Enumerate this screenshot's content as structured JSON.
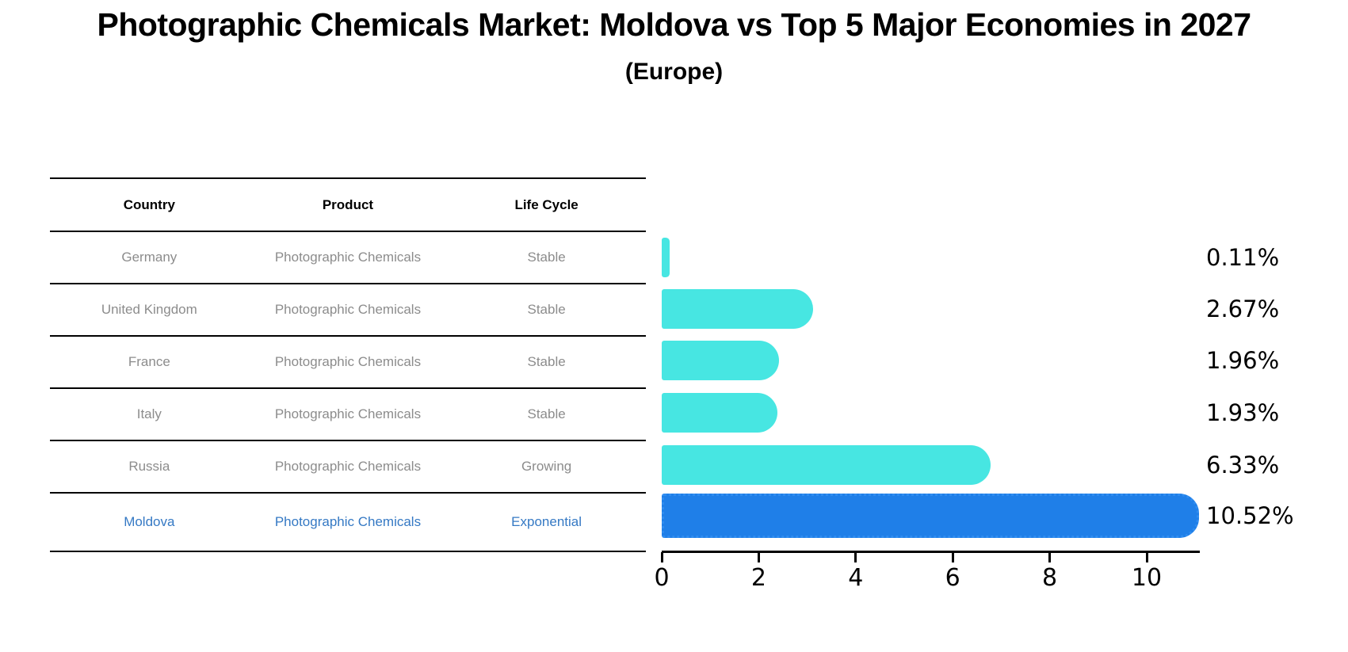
{
  "header": {
    "title": "Photographic Chemicals Market: Moldova vs Top 5 Major Economies in 2027",
    "subtitle": "(Europe)"
  },
  "table": {
    "columns": [
      "Country",
      "Product",
      "Life Cycle"
    ],
    "rows": [
      {
        "country": "Germany",
        "product": "Photographic Chemicals",
        "life_cycle": "Stable",
        "highlight": false
      },
      {
        "country": "United Kingdom",
        "product": "Photographic Chemicals",
        "life_cycle": "Stable",
        "highlight": false
      },
      {
        "country": "France",
        "product": "Photographic Chemicals",
        "life_cycle": "Stable",
        "highlight": false
      },
      {
        "country": "Italy",
        "product": "Photographic Chemicals",
        "life_cycle": "Stable",
        "highlight": false
      },
      {
        "country": "Russia",
        "product": "Photographic Chemicals",
        "life_cycle": "Growing",
        "highlight": false
      },
      {
        "country": "Moldova",
        "product": "Photographic Chemicals",
        "life_cycle": "Exponential",
        "highlight": true
      }
    ]
  },
  "chart_data": {
    "type": "bar",
    "orientation": "horizontal",
    "title": "Photographic Chemicals Market: Moldova vs Top 5 Major Economies in 2027 (Europe)",
    "categories": [
      "Germany",
      "United Kingdom",
      "France",
      "Italy",
      "Russia",
      "Moldova"
    ],
    "values": [
      0.11,
      2.67,
      1.96,
      1.93,
      6.33,
      10.52
    ],
    "value_labels": [
      "0.11%",
      "2.67%",
      "1.96%",
      "1.93%",
      "6.33%",
      "10.52%"
    ],
    "x_ticks": [
      0,
      2,
      4,
      6,
      8,
      10
    ],
    "xlim": [
      0,
      11.1
    ],
    "grid": false,
    "legend": false,
    "highlight_index": 5
  },
  "colors": {
    "bar": "#47E6E2",
    "highlight_bar": "#1F7FE8",
    "highlight_bar_border": "#2F8CF0",
    "row_text": "#8C8C8C",
    "highlight_text": "#3579C4",
    "axis": "#000000"
  }
}
